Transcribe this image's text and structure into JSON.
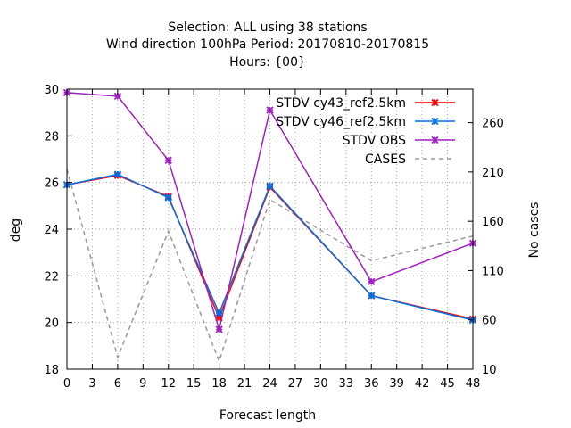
{
  "chart_data": {
    "type": "line",
    "title_lines": [
      "Selection: ALL using    38 stations",
      "Wind direction 100hPa   Period: 20170810-20170815",
      "Hours: {00}"
    ],
    "xlabel": "Forecast length",
    "ylabel": "deg",
    "y2label": "No cases",
    "xlim": [
      0,
      48
    ],
    "ylim": [
      18,
      30
    ],
    "y2lim": [
      10,
      294
    ],
    "xticks": [
      0,
      3,
      6,
      9,
      12,
      15,
      18,
      21,
      24,
      27,
      30,
      33,
      36,
      39,
      42,
      45,
      48
    ],
    "yticks": [
      18,
      20,
      22,
      24,
      26,
      28,
      30
    ],
    "y2ticks": [
      10,
      60,
      110,
      160,
      210,
      260
    ],
    "grid": true,
    "legend_position": "top-right",
    "x": [
      0,
      6,
      12,
      18,
      24,
      36,
      48
    ],
    "series": [
      {
        "name": "STDV cy43_ref2.5km",
        "axis": "y",
        "color": "#ff0000",
        "style": "solid",
        "marker": "x",
        "values": [
          25.9,
          26.3,
          25.4,
          20.2,
          25.8,
          21.15,
          20.15
        ]
      },
      {
        "name": "STDV cy46_ref2.5km",
        "axis": "y",
        "color": "#0070e0",
        "style": "solid",
        "marker": "x",
        "values": [
          25.9,
          26.35,
          25.35,
          20.4,
          25.85,
          21.15,
          20.1
        ]
      },
      {
        "name": "STDV OBS",
        "axis": "y",
        "color": "#a020c0",
        "style": "solid",
        "marker": "x",
        "values": [
          29.85,
          29.7,
          26.95,
          19.7,
          29.1,
          21.75,
          23.4
        ]
      },
      {
        "name": "CASES",
        "axis": "y2",
        "color": "#999999",
        "style": "dashed",
        "marker": "none",
        "values": [
          213,
          22,
          150,
          18,
          182,
          120,
          145
        ]
      }
    ]
  }
}
